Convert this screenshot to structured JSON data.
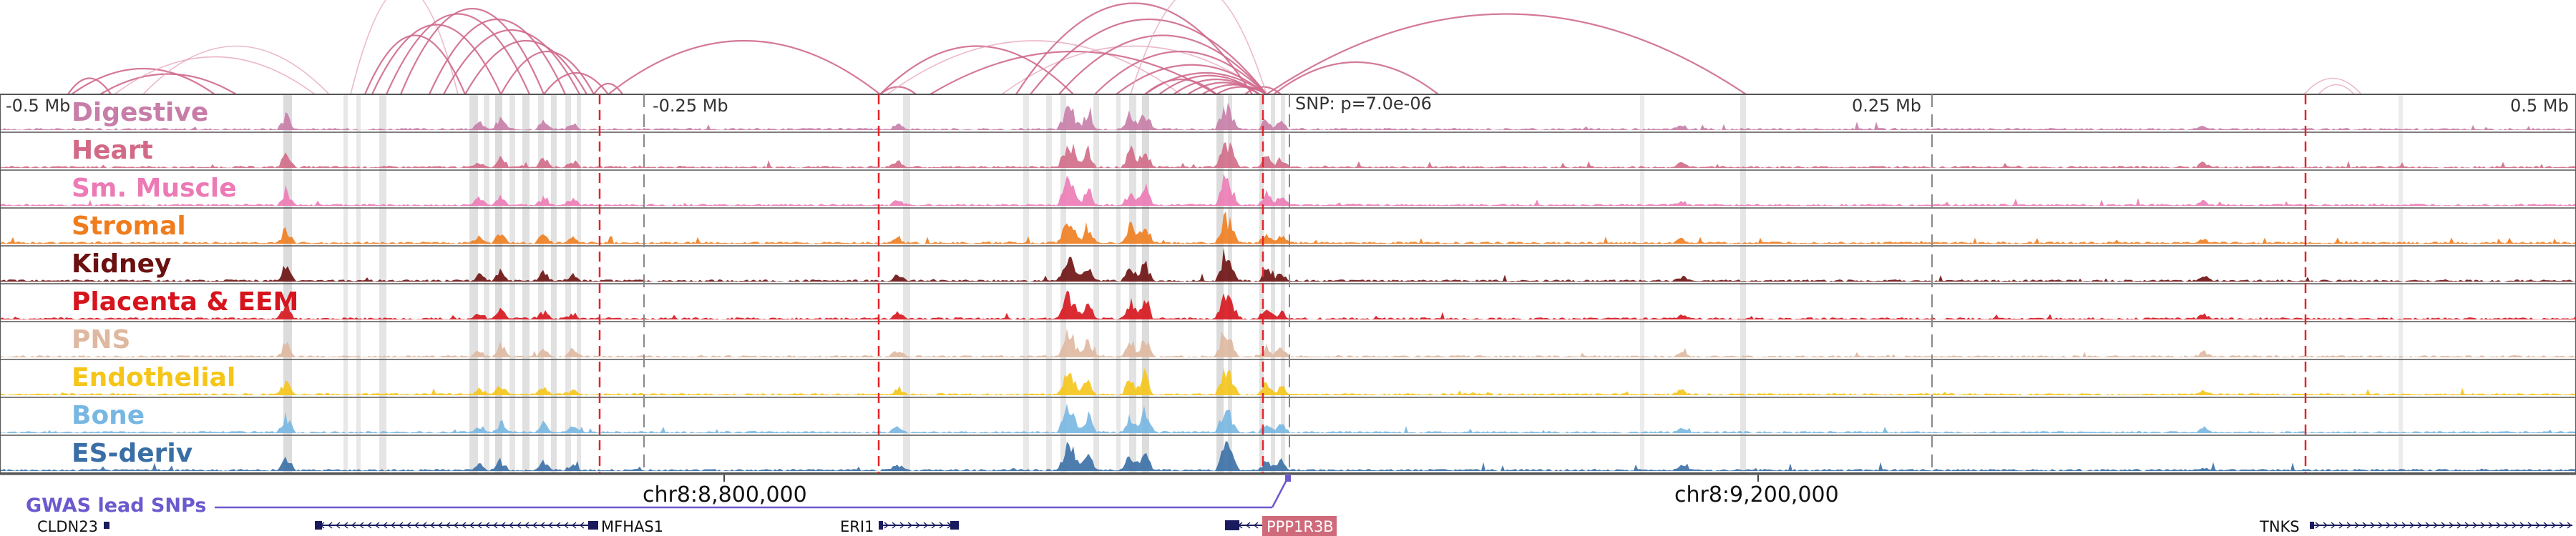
{
  "tracks": [
    {
      "name": "Digestive",
      "color": "#c77da8"
    },
    {
      "name": "Heart",
      "color": "#d26a86"
    },
    {
      "name": "Sm. Muscle",
      "color": "#ec7ab5"
    },
    {
      "name": "Stromal",
      "color": "#ef7d1e"
    },
    {
      "name": "Kidney",
      "color": "#6b1010"
    },
    {
      "name": "Placenta & EEM",
      "color": "#d6141d"
    },
    {
      "name": "PNS",
      "color": "#deb8a0"
    },
    {
      "name": "Endothelial",
      "color": "#f5c518"
    },
    {
      "name": "Bone",
      "color": "#78b7e2"
    },
    {
      "name": "ES-deriv",
      "color": "#3a6fa6"
    }
  ],
  "axis": {
    "ticks": [
      "-0.5 Mb",
      "-0.25 Mb",
      "0.25 Mb",
      "0.5 Mb"
    ],
    "snp_label": "SNP: p=7.0e-06",
    "coords": [
      "chr8:8,800,000",
      "chr8:9,200,000"
    ]
  },
  "gwas_label": "GWAS lead SNPs",
  "genes": [
    {
      "name": "CLDN23",
      "strand": "+"
    },
    {
      "name": "MFHAS1",
      "strand": "-"
    },
    {
      "name": "ERI1",
      "strand": "+"
    },
    {
      "name": "PPP1R3B",
      "strand": "-",
      "highlight": true
    },
    {
      "name": "TNKS",
      "strand": "+"
    }
  ],
  "colors": {
    "loop": "#cf6a8c",
    "loop_light": "#e6a2bb",
    "gwas": "#6a5acd",
    "highlight_line": "#e3242b",
    "gene_body": "#1a1a5e",
    "ppp1r3b_box": "#cf6a7a"
  }
}
